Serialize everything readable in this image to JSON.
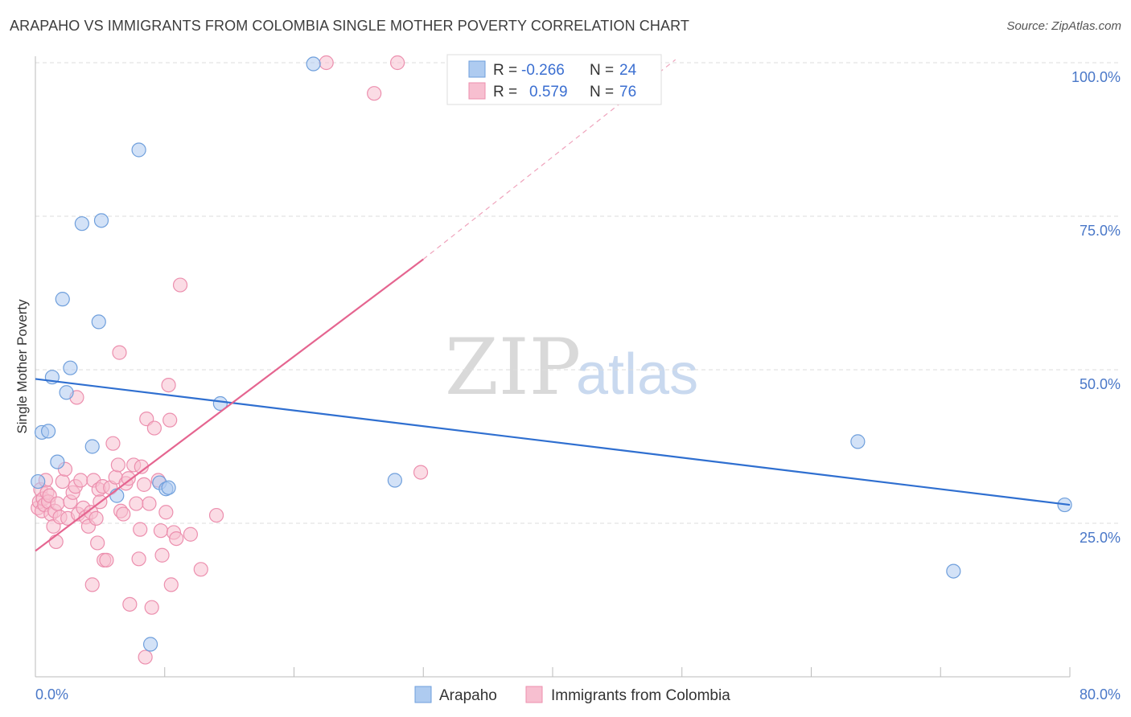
{
  "title": "ARAPAHO VS IMMIGRANTS FROM COLOMBIA SINGLE MOTHER POVERTY CORRELATION CHART",
  "source": "Source: ZipAtlas.com",
  "watermark": {
    "zip": "ZIP",
    "atlas": "atlas"
  },
  "colors": {
    "blue_fill": "#aecbf0",
    "blue_stroke": "#6f9fdc",
    "blue_line": "#2f6fd0",
    "pink_fill": "#f7bfd0",
    "pink_stroke": "#ec8fae",
    "pink_line": "#e56590",
    "grid": "#dddddd",
    "axis_label": "#4a78c8"
  },
  "legend": {
    "rows": [
      {
        "r_label": "R =",
        "r_value": "-0.266",
        "n_label": "N =",
        "n_value": "24"
      },
      {
        "r_label": "R =",
        "r_value": "0.579",
        "n_label": "N =",
        "n_value": "76"
      }
    ]
  },
  "chart_data": {
    "type": "scatter",
    "title": "ARAPAHO VS IMMIGRANTS FROM COLOMBIA SINGLE MOTHER POVERTY CORRELATION CHART",
    "xlabel": "",
    "ylabel": "Single Mother Poverty",
    "xlim": [
      0,
      80
    ],
    "ylim": [
      0,
      102
    ],
    "x_tick_labels": {
      "left": "0.0%",
      "right": "80.0%"
    },
    "y_ticks": [
      {
        "value": 25,
        "label": "25.0%"
      },
      {
        "value": 50,
        "label": "50.0%"
      },
      {
        "value": 75,
        "label": "75.0%"
      },
      {
        "value": 100,
        "label": "100.0%"
      }
    ],
    "series": [
      {
        "name": "Arapaho",
        "color": "blue",
        "r": -0.266,
        "n": 24,
        "trend": {
          "x0": 0,
          "y0": 48.5,
          "x1": 80,
          "y1": 28.0
        },
        "points": [
          [
            0.2,
            31.8
          ],
          [
            0.5,
            39.8
          ],
          [
            1.0,
            40.0
          ],
          [
            1.3,
            48.8
          ],
          [
            1.7,
            35.0
          ],
          [
            2.1,
            61.5
          ],
          [
            2.4,
            46.3
          ],
          [
            2.7,
            50.3
          ],
          [
            3.6,
            73.8
          ],
          [
            4.4,
            37.5
          ],
          [
            4.9,
            57.8
          ],
          [
            5.1,
            74.3
          ],
          [
            6.3,
            29.5
          ],
          [
            8.0,
            85.8
          ],
          [
            8.9,
            5.3
          ],
          [
            9.6,
            31.6
          ],
          [
            10.1,
            30.6
          ],
          [
            10.3,
            30.8
          ],
          [
            14.3,
            44.5
          ],
          [
            21.5,
            99.8
          ],
          [
            27.8,
            32.0
          ],
          [
            63.6,
            38.3
          ],
          [
            71.0,
            17.2
          ],
          [
            79.6,
            28.0
          ]
        ]
      },
      {
        "name": "Immigrants from Colombia",
        "color": "pink",
        "r": 0.579,
        "n": 76,
        "trend": {
          "x0": 0,
          "y0": 20.5,
          "x1": 30,
          "y1": 68.0,
          "dash_x1": 49.5,
          "dash_y1": 100.5
        },
        "points": [
          [
            0.2,
            27.5
          ],
          [
            0.3,
            28.5
          ],
          [
            0.4,
            30.5
          ],
          [
            0.5,
            27.0
          ],
          [
            0.6,
            29.0
          ],
          [
            0.7,
            28.0
          ],
          [
            0.8,
            32.0
          ],
          [
            0.9,
            30.0
          ],
          [
            1.0,
            28.5
          ],
          [
            1.1,
            29.5
          ],
          [
            1.2,
            26.5
          ],
          [
            1.4,
            24.5
          ],
          [
            1.5,
            27.0
          ],
          [
            1.6,
            22.0
          ],
          [
            1.7,
            28.2
          ],
          [
            1.9,
            26.0
          ],
          [
            2.1,
            31.8
          ],
          [
            2.3,
            33.8
          ],
          [
            2.5,
            25.8
          ],
          [
            2.7,
            28.5
          ],
          [
            2.9,
            30.0
          ],
          [
            3.1,
            31.0
          ],
          [
            3.3,
            26.5
          ],
          [
            3.5,
            32.0
          ],
          [
            3.7,
            27.5
          ],
          [
            3.9,
            26.0
          ],
          [
            4.1,
            24.5
          ],
          [
            4.3,
            26.8
          ],
          [
            4.5,
            32.0
          ],
          [
            4.7,
            25.8
          ],
          [
            4.8,
            21.8
          ],
          [
            4.9,
            30.5
          ],
          [
            5.0,
            28.5
          ],
          [
            5.2,
            31.0
          ],
          [
            5.3,
            19.0
          ],
          [
            5.5,
            19.0
          ],
          [
            5.8,
            30.8
          ],
          [
            6.0,
            38.0
          ],
          [
            6.2,
            32.5
          ],
          [
            6.4,
            34.5
          ],
          [
            6.6,
            27.0
          ],
          [
            6.8,
            26.5
          ],
          [
            7.0,
            31.5
          ],
          [
            6.5,
            52.8
          ],
          [
            7.2,
            32.3
          ],
          [
            7.3,
            11.8
          ],
          [
            7.6,
            34.5
          ],
          [
            7.8,
            28.2
          ],
          [
            8.0,
            19.2
          ],
          [
            8.1,
            24.0
          ],
          [
            8.2,
            34.2
          ],
          [
            8.4,
            31.3
          ],
          [
            8.6,
            42.0
          ],
          [
            8.8,
            28.2
          ],
          [
            9.0,
            11.3
          ],
          [
            9.2,
            40.5
          ],
          [
            9.5,
            32.0
          ],
          [
            9.7,
            23.8
          ],
          [
            9.8,
            19.8
          ],
          [
            10.1,
            26.8
          ],
          [
            10.3,
            47.5
          ],
          [
            10.4,
            41.8
          ],
          [
            10.5,
            15.0
          ],
          [
            10.7,
            23.5
          ],
          [
            10.9,
            22.5
          ],
          [
            11.2,
            63.8
          ],
          [
            12.0,
            23.2
          ],
          [
            12.8,
            17.5
          ],
          [
            14.0,
            26.3
          ],
          [
            8.5,
            3.2
          ],
          [
            3.2,
            45.5
          ],
          [
            4.4,
            15.0
          ],
          [
            26.2,
            95.0
          ],
          [
            22.5,
            100.0
          ],
          [
            28.0,
            100.0
          ],
          [
            29.8,
            33.3
          ]
        ]
      }
    ]
  },
  "bottom_legend": [
    {
      "label": "Arapaho"
    },
    {
      "label": "Immigrants from Colombia"
    }
  ]
}
